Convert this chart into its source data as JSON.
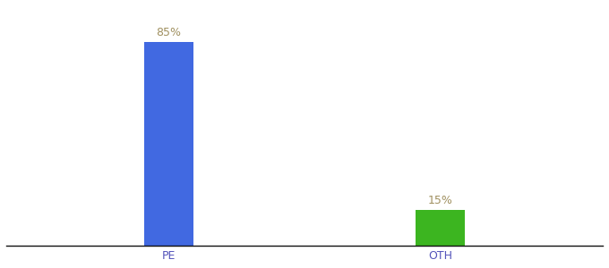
{
  "categories": [
    "PE",
    "OTH"
  ],
  "values": [
    85,
    15
  ],
  "bar_colors": [
    "#4169e1",
    "#3cb520"
  ],
  "label_texts": [
    "85%",
    "15%"
  ],
  "label_color": "#a09060",
  "bar_width": 0.18,
  "background_color": "#ffffff",
  "ylim": [
    0,
    100
  ],
  "tick_label_color": "#5555bb",
  "label_fontsize": 9,
  "tick_fontsize": 9,
  "fig_width": 6.8,
  "fig_height": 3.0,
  "dpi": 100,
  "x_positions": [
    1,
    2
  ],
  "xlim": [
    0.4,
    2.6
  ]
}
